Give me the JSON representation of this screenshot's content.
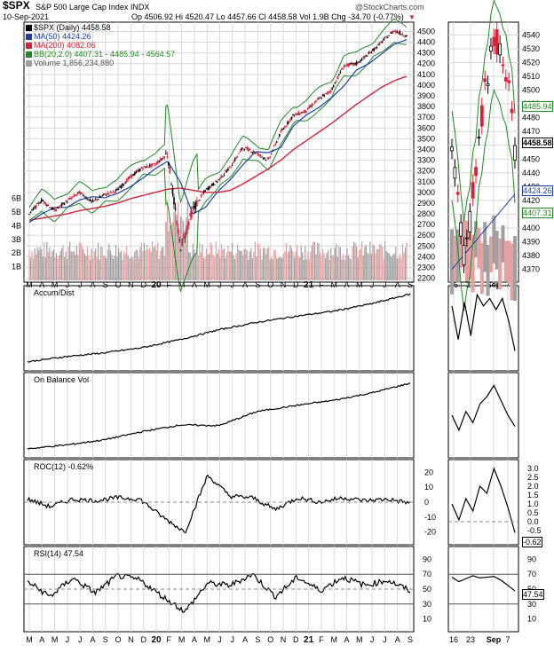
{
  "header": {
    "symbol": "$SPX",
    "name": "S&P 500 Large Cap Index INDX",
    "watermark": "@StockCharts.com",
    "date": "10-Sep-2021",
    "ohlc": "Op 4506.92  Hi 4520.47  Lo 4457.66  Cl 4458.58  Vol 1.9B  Chg -34.70 (-0.77%)",
    "down_marker": "▼"
  },
  "legend": {
    "price": "$SPX (Daily) 4458.58",
    "ma50": "MA(50) 4424.26",
    "ma200": "MA(200) 4082.06",
    "bb": "BB(20,2.0) 4407.31 - 4485.94 - 4564.57",
    "volume": "Volume 1,856,234,880"
  },
  "colors": {
    "ma50": "#1f3fa8",
    "ma200": "#d6233a",
    "bb": "#1f8a1f",
    "volume": "#e6a0a0",
    "volume_gray": "#a0a0a0",
    "up": "#000000",
    "down": "#d6233a",
    "line": "#000000",
    "grid": "#d8d8d8"
  },
  "panels": {
    "price": {
      "y_ticks": [
        "4500",
        "4400",
        "4300",
        "4200",
        "4100",
        "4000",
        "3900",
        "3800",
        "3700",
        "3600",
        "3500",
        "3400",
        "3300",
        "3200",
        "3100",
        "3000",
        "2900",
        "2800",
        "2700",
        "2600",
        "2500",
        "2400",
        "2300",
        "2200"
      ],
      "y_range": [
        2180,
        4570
      ],
      "volume_ticks": [
        "6B",
        "5B",
        "4B",
        "3B",
        "2B",
        "1B"
      ],
      "zoom_ticks": [
        "4540",
        "4530",
        "4520",
        "4510",
        "4500",
        "4490",
        "4480",
        "4470",
        "4460",
        "4450",
        "4440",
        "4430",
        "4420",
        "4410",
        "4400",
        "4390",
        "4380",
        "4370"
      ],
      "zoom_range": [
        4362,
        4548
      ],
      "zoom_labels": {
        "bb_mid": "4485.94",
        "close": "4458.58",
        "ma50": "4424.26",
        "bb_low": "4407.31"
      }
    },
    "accum": {
      "title": "Accum/Dist"
    },
    "obv": {
      "title": "On Balance Vol"
    },
    "roc": {
      "title": "ROC(12) -0.62%",
      "y_ticks": [
        "20",
        "10",
        "0",
        "-10",
        "-20"
      ],
      "zoom_ticks": [
        "3.0",
        "2.5",
        "2.0",
        "1.5",
        "1.0",
        "0.5",
        "0.0",
        "-0.5"
      ],
      "zoom_value": "-0.62"
    },
    "rsi": {
      "title": "RSI(14) 47.54",
      "y_ticks": [
        "90",
        "70",
        "50",
        "30",
        "10"
      ],
      "zoom_value": "47.54"
    }
  },
  "x_axis": {
    "main": [
      "M",
      "A",
      "M",
      "J",
      "J",
      "A",
      "S",
      "O",
      "N",
      "D",
      "20",
      "F",
      "M",
      "A",
      "M",
      "J",
      "J",
      "A",
      "S",
      "O",
      "N",
      "D",
      "21",
      "F",
      "M",
      "A",
      "M",
      "J",
      "J",
      "A",
      "S"
    ],
    "zoom": [
      "16",
      "23",
      "Sep",
      "7"
    ]
  },
  "chart_data": [
    {
      "type": "line",
      "title": "$SPX (Daily) 4458.58",
      "series_kind": "candlestick with moving averages and Bollinger Bands",
      "x": [
        "2019-03",
        "2019-04",
        "2019-05",
        "2019-06",
        "2019-07",
        "2019-08",
        "2019-09",
        "2019-10",
        "2019-11",
        "2019-12",
        "2020-01",
        "2020-02",
        "2020-03",
        "2020-04",
        "2020-05",
        "2020-06",
        "2020-07",
        "2020-08",
        "2020-09",
        "2020-10",
        "2020-11",
        "2020-12",
        "2021-01",
        "2021-02",
        "2021-03",
        "2021-04",
        "2021-05",
        "2021-06",
        "2021-07",
        "2021-08",
        "2021-09"
      ],
      "series": [
        {
          "name": "$SPX",
          "values": [
            2800,
            2930,
            2830,
            2920,
            3000,
            2910,
            2980,
            3020,
            3140,
            3230,
            3260,
            3360,
            2480,
            2840,
            3020,
            3110,
            3240,
            3420,
            3370,
            3300,
            3560,
            3720,
            3760,
            3870,
            3950,
            4180,
            4200,
            4290,
            4400,
            4510,
            4460
          ]
        },
        {
          "name": "MA(50)",
          "values": [
            2720,
            2800,
            2860,
            2860,
            2930,
            2960,
            2950,
            2990,
            3050,
            3130,
            3220,
            3290,
            3100,
            2800,
            2860,
            3010,
            3120,
            3260,
            3380,
            3370,
            3420,
            3620,
            3720,
            3790,
            3880,
            3990,
            4140,
            4200,
            4290,
            4380,
            4424
          ]
        },
        {
          "name": "MA(200)",
          "values": [
            2740,
            2760,
            2780,
            2800,
            2830,
            2850,
            2870,
            2900,
            2940,
            2970,
            3000,
            3030,
            3040,
            3020,
            3000,
            3000,
            3020,
            3080,
            3150,
            3220,
            3300,
            3400,
            3480,
            3560,
            3640,
            3730,
            3820,
            3900,
            3980,
            4040,
            4082
          ]
        }
      ],
      "ylim": [
        2180,
        4570
      ],
      "volume_unit": "B",
      "volume_ylim": [
        0,
        6.5
      ]
    },
    {
      "type": "line",
      "title": "Accum/Dist",
      "x": [
        "2019-03",
        "2019-06",
        "2019-09",
        "2019-12",
        "2020-03",
        "2020-06",
        "2020-09",
        "2020-12",
        "2021-03",
        "2021-06",
        "2021-09"
      ],
      "values": [
        0.05,
        0.12,
        0.17,
        0.24,
        0.35,
        0.48,
        0.58,
        0.66,
        0.73,
        0.83,
        0.96
      ]
    },
    {
      "type": "line",
      "title": "On Balance Vol",
      "x": [
        "2019-03",
        "2019-06",
        "2019-09",
        "2019-12",
        "2020-03",
        "2020-06",
        "2020-09",
        "2020-12",
        "2021-03",
        "2021-06",
        "2021-09"
      ],
      "values": [
        0.05,
        0.1,
        0.17,
        0.28,
        0.37,
        0.36,
        0.55,
        0.63,
        0.7,
        0.8,
        0.93
      ]
    },
    {
      "type": "line",
      "title": "ROC(12) -0.62%",
      "x": [
        "2019-03",
        "2019-05",
        "2019-07",
        "2019-09",
        "2019-11",
        "2020-01",
        "2020-02",
        "2020-03",
        "2020-04",
        "2020-06",
        "2020-08",
        "2020-10",
        "2020-12",
        "2021-02",
        "2021-04",
        "2021-06",
        "2021-08",
        "2021-09"
      ],
      "values": [
        2,
        -3,
        2,
        1,
        3,
        2,
        -10,
        -20,
        18,
        4,
        3,
        -5,
        3,
        0,
        3,
        1,
        2,
        -0.62
      ],
      "ylim": [
        -25,
        25
      ]
    },
    {
      "type": "line",
      "title": "RSI(14) 47.54",
      "x": [
        "2019-03",
        "2019-05",
        "2019-07",
        "2019-09",
        "2019-11",
        "2020-01",
        "2020-02",
        "2020-03",
        "2020-04",
        "2020-06",
        "2020-08",
        "2020-10",
        "2020-12",
        "2021-02",
        "2021-04",
        "2021-06",
        "2021-08",
        "2021-09"
      ],
      "values": [
        60,
        40,
        65,
        45,
        68,
        62,
        40,
        20,
        58,
        55,
        70,
        40,
        66,
        48,
        66,
        55,
        62,
        47.54
      ],
      "ylim": [
        0,
        100
      ]
    }
  ]
}
